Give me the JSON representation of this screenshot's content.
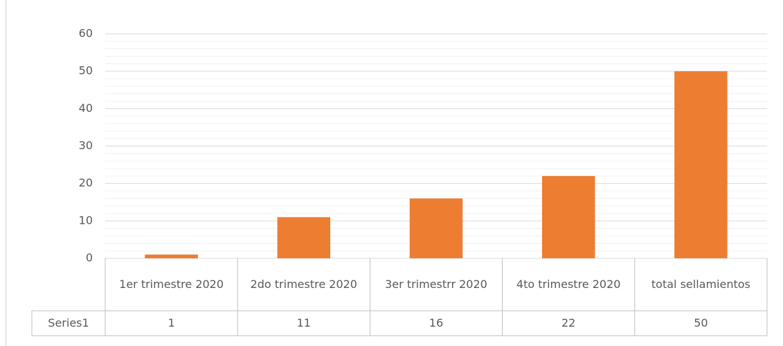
{
  "chart_data": {
    "type": "bar",
    "categories": [
      "1er trimestre 2020",
      "2do trimestre 2020",
      "3er trimestrr 2020",
      "4to trimestre 2020",
      "total sellamientos"
    ],
    "series": [
      {
        "name": "Series1",
        "color": "#ed7d31",
        "values": [
          1,
          11,
          16,
          22,
          50
        ]
      }
    ],
    "ylim": [
      0,
      60
    ],
    "yticks": [
      0,
      10,
      20,
      30,
      40,
      50,
      60
    ],
    "minor_yticks": [
      2,
      4,
      6,
      8,
      12,
      14,
      16,
      18,
      22,
      24,
      26,
      28,
      32,
      34,
      36,
      38,
      42,
      44,
      46,
      48,
      52,
      54,
      56,
      58
    ],
    "grid": true,
    "data_table": true
  }
}
